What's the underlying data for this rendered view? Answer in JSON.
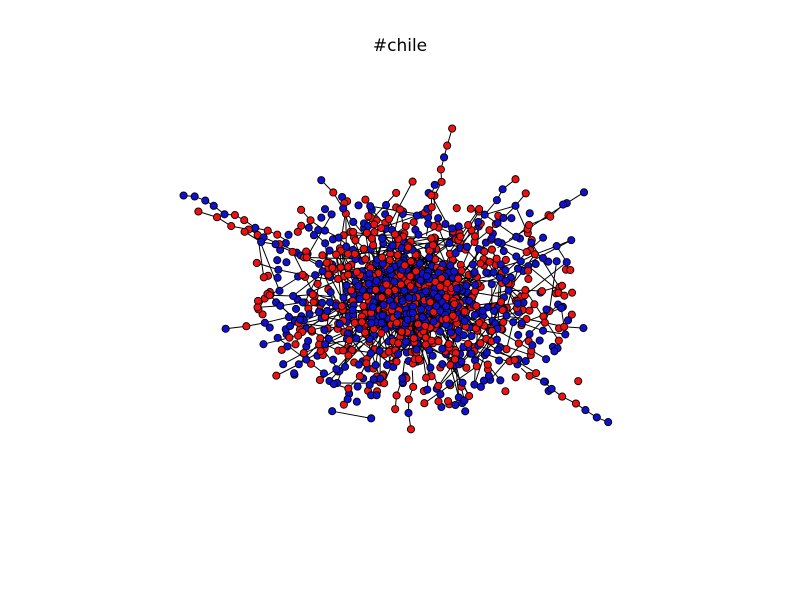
{
  "figure": {
    "title": "#chile"
  },
  "colors": {
    "node_red": "#ee1111",
    "node_blue": "#1111cc",
    "node_outline": "#000000",
    "edge": "#000000",
    "background": "#ffffff"
  },
  "legend": "none",
  "axes": "hidden"
}
